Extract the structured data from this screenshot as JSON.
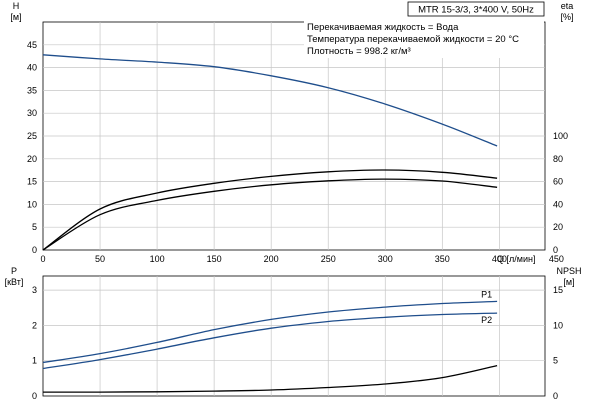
{
  "chart_data": [
    {
      "type": "line",
      "title": "MTR 15-3/3, 3*400 V, 50Hz",
      "annotations": [
        "Перекачиваемая жидкость = Вода",
        "Температура перекачиваемой жидкости = 20 °C",
        "Плотность = 998.2 кг/м³"
      ],
      "x_title": "Q [л/мин]",
      "x_ticks": [
        "0",
        "50",
        "100",
        "150",
        "200",
        "250",
        "300",
        "350",
        "400",
        "450"
      ],
      "xlim": [
        0,
        440
      ],
      "left_axis": {
        "title_top": "H",
        "title_bottom": "[м]",
        "ticks": [
          "0",
          "5",
          "10",
          "15",
          "20",
          "25",
          "30",
          "35",
          "40",
          "45"
        ],
        "ylim": [
          0,
          50
        ]
      },
      "right_axis": {
        "title_top": "eta",
        "title_bottom": "[%]",
        "ticks": [
          "0",
          "20",
          "40",
          "60",
          "80",
          "100"
        ],
        "ylim": [
          0,
          200
        ]
      },
      "grid": true,
      "series": [
        {
          "axis": "left",
          "color": "#1f4e8c",
          "x": [
            0,
            50,
            100,
            150,
            200,
            250,
            300,
            350,
            398
          ],
          "y": [
            42.8,
            41.9,
            41.2,
            40.2,
            38.2,
            35.6,
            32.0,
            27.6,
            22.8
          ]
        },
        {
          "axis": "right",
          "color": "#000000",
          "x": [
            0,
            50,
            100,
            150,
            200,
            250,
            300,
            350,
            398
          ],
          "y": [
            0,
            36,
            50,
            58.5,
            64.6,
            68.6,
            70.2,
            68.2,
            63.0
          ]
        },
        {
          "axis": "right",
          "color": "#000000",
          "x": [
            0,
            50,
            100,
            150,
            200,
            250,
            300,
            350,
            398
          ],
          "y": [
            0,
            31,
            43.5,
            51.5,
            57.2,
            60.7,
            62.2,
            60.5,
            55.0
          ]
        }
      ]
    },
    {
      "type": "line",
      "x_ticks": [
        "0",
        "50",
        "100",
        "150",
        "200",
        "250",
        "300",
        "350",
        "400",
        "450"
      ],
      "xlim": [
        0,
        440
      ],
      "left_axis": {
        "title_top": "P",
        "title_bottom": "[кВт]",
        "ticks": [
          "0",
          "1",
          "2",
          "3"
        ],
        "ylim": [
          0,
          3.4
        ]
      },
      "right_axis": {
        "title_top": "NPSH",
        "title_bottom": "[м]",
        "ticks": [
          "0",
          "5",
          "10",
          "15"
        ],
        "ylim": [
          0,
          17
        ]
      },
      "grid": true,
      "series": [
        {
          "name": "P1",
          "axis": "left",
          "color": "#1f4e8c",
          "x": [
            0,
            50,
            100,
            150,
            200,
            250,
            300,
            350,
            398
          ],
          "y": [
            0.95,
            1.2,
            1.52,
            1.88,
            2.17,
            2.38,
            2.52,
            2.62,
            2.68
          ]
        },
        {
          "name": "P2",
          "axis": "left",
          "color": "#1f4e8c",
          "x": [
            0,
            50,
            100,
            150,
            200,
            250,
            300,
            350,
            398
          ],
          "y": [
            0.78,
            1.03,
            1.33,
            1.65,
            1.92,
            2.11,
            2.23,
            2.31,
            2.35
          ]
        },
        {
          "axis": "right",
          "color": "#000000",
          "x": [
            0,
            50,
            100,
            150,
            200,
            250,
            300,
            350,
            398
          ],
          "y": [
            0.55,
            0.55,
            0.6,
            0.7,
            0.85,
            1.2,
            1.7,
            2.6,
            4.3
          ]
        }
      ]
    }
  ]
}
